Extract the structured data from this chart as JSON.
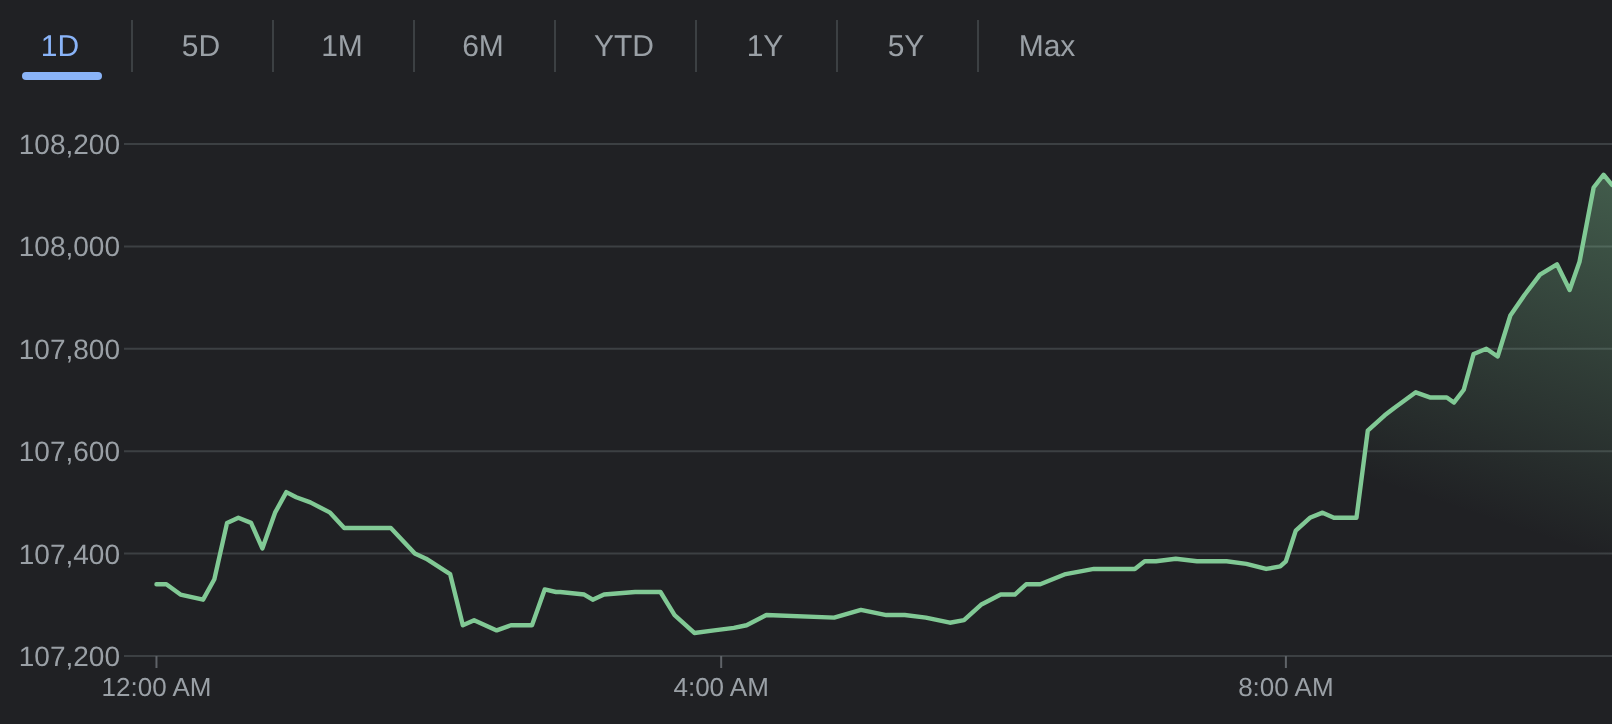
{
  "chart_data": {
    "type": "area",
    "color": "#81c995",
    "grid": "y",
    "annotations": [
      "1D",
      "5D",
      "1M",
      "6M",
      "YTD",
      "1Y",
      "5Y",
      "Max"
    ],
    "xlim": [
      -0.23,
      10.31
    ],
    "xticks": [
      {
        "value": 0,
        "label": "12:00 AM"
      },
      {
        "value": 4,
        "label": "4:00 AM"
      },
      {
        "value": 8,
        "label": "8:00 AM"
      }
    ],
    "ylim": [
      107200,
      108200
    ],
    "yticks": [
      {
        "value": 107200,
        "label": "107,200"
      },
      {
        "value": 107400,
        "label": "107,400"
      },
      {
        "value": 107600,
        "label": "107,600"
      },
      {
        "value": 107800,
        "label": "107,800"
      },
      {
        "value": 108000,
        "label": "108,000"
      },
      {
        "value": 108200,
        "label": "108,200"
      }
    ],
    "x": [
      0,
      0.07,
      0.17,
      0.33,
      0.41,
      0.5,
      0.58,
      0.67,
      0.75,
      0.84,
      0.92,
      0.99,
      1.09,
      1.23,
      1.33,
      1.42,
      1.66,
      1.83,
      1.91,
      2.08,
      2.17,
      2.25,
      2.41,
      2.51,
      2.58,
      2.66,
      2.75,
      2.83,
      2.86,
      3.03,
      3.09,
      3.17,
      3.39,
      3.57,
      3.67,
      3.81,
      3.95,
      4.09,
      4.18,
      4.32,
      4.8,
      4.99,
      5.17,
      5.3,
      5.45,
      5.62,
      5.72,
      5.84,
      5.98,
      6.08,
      6.16,
      6.26,
      6.44,
      6.64,
      6.93,
      7.0,
      7.08,
      7.22,
      7.37,
      7.58,
      7.72,
      7.86,
      7.96,
      8.0,
      8.07,
      8.17,
      8.26,
      8.34,
      8.5,
      8.58,
      8.7,
      8.77,
      8.92,
      9.02,
      9.14,
      9.19,
      9.26,
      9.33,
      9.42,
      9.5,
      9.59,
      9.69,
      9.8,
      9.92,
      10.01,
      10.08,
      10.18,
      10.25,
      10.31
    ],
    "values": [
      107340,
      107340,
      107320,
      107310,
      107350,
      107460,
      107470,
      107460,
      107410,
      107480,
      107520,
      107510,
      107500,
      107480,
      107450,
      107450,
      107450,
      107400,
      107390,
      107360,
      107260,
      107270,
      107250,
      107260,
      107260,
      107260,
      107330,
      107325,
      107325,
      107320,
      107310,
      107320,
      107325,
      107325,
      107280,
      107245,
      107250,
      107255,
      107260,
      107280,
      107275,
      107290,
      107280,
      107280,
      107275,
      107265,
      107270,
      107300,
      107320,
      107320,
      107340,
      107340,
      107360,
      107370,
      107370,
      107385,
      107385,
      107390,
      107385,
      107385,
      107380,
      107370,
      107375,
      107385,
      107445,
      107470,
      107480,
      107470,
      107470,
      107640,
      107670,
      107685,
      107715,
      107705,
      107705,
      107695,
      107720,
      107790,
      107800,
      107785,
      107865,
      107905,
      107945,
      107965,
      107915,
      107970,
      108115,
      108140,
      108120
    ]
  }
}
